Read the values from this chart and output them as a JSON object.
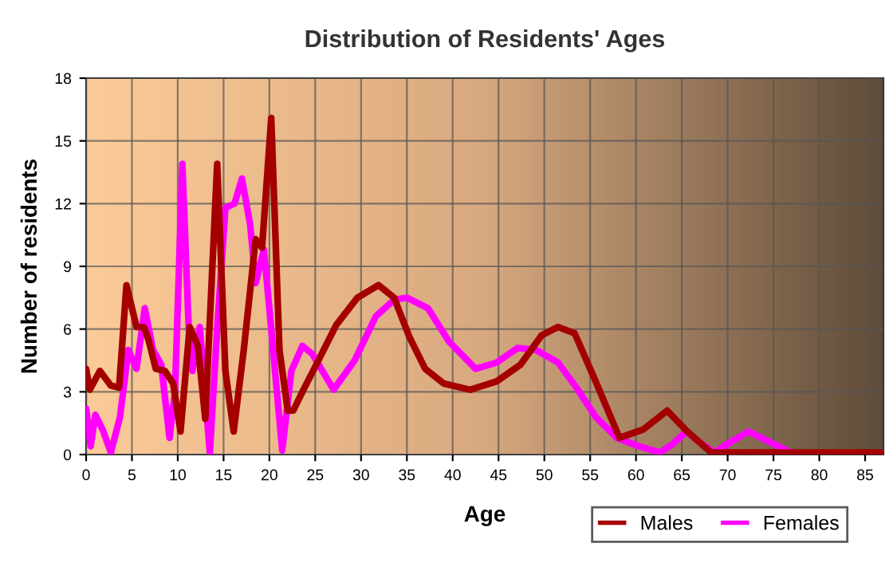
{
  "chart_data": {
    "type": "line",
    "title": "Distribution of Residents' Ages",
    "xlabel": "Age",
    "ylabel": "Number of residents",
    "xlim": [
      0,
      87
    ],
    "xticks": [
      0,
      5,
      10,
      15,
      20,
      25,
      30,
      35,
      40,
      45,
      50,
      55,
      60,
      65,
      70,
      75,
      80,
      85
    ],
    "ylim": [
      0,
      18
    ],
    "yticks": [
      0,
      3,
      6,
      9,
      12,
      15,
      18
    ],
    "grid": true,
    "legend": "bottom right",
    "line_style": "solid",
    "marker": "none",
    "series": [
      {
        "name": "Males",
        "color": "#a50000",
        "x": [
          0,
          0.4,
          1.5,
          2.7,
          3.6,
          4.4,
          5.5,
          6.3,
          6.8,
          7.6,
          8.6,
          9.5,
          10.3,
          11.3,
          12.2,
          13,
          14.3,
          15.2,
          16.1,
          17.2,
          18.5,
          19.2,
          20.2,
          21.1,
          22,
          22.6,
          23.6,
          25,
          27.3,
          29.6,
          31.9,
          33.6,
          35.3,
          37,
          39,
          41.9,
          44.8,
          47.4,
          49.7,
          51.5,
          53.3,
          55.6,
          58.2,
          60.8,
          63.4,
          65.6,
          68.2,
          70.4,
          75,
          79.7,
          86.7
        ],
        "values": [
          4.1,
          3.1,
          4.0,
          3.3,
          3.2,
          8.1,
          6.1,
          6.1,
          5.5,
          4.1,
          4.0,
          3.4,
          1.1,
          6.1,
          5.2,
          1.7,
          13.9,
          4,
          1.1,
          5,
          10.3,
          9.9,
          16.1,
          5,
          2.1,
          2.1,
          3,
          4.2,
          6.2,
          7.5,
          8.1,
          7.5,
          5.6,
          4.1,
          3.4,
          3.1,
          3.5,
          4.3,
          5.7,
          6.1,
          5.8,
          3.5,
          0.8,
          1.2,
          2.1,
          1.1,
          0.1,
          0.1,
          0.1,
          0.1,
          0.1
        ]
      },
      {
        "name": "Females",
        "color": "#ff00ff",
        "x": [
          0,
          0.5,
          1,
          1.8,
          2.7,
          3.7,
          4.6,
          5.5,
          6.4,
          7.3,
          8.2,
          9.1,
          9.7,
          10.5,
          11.2,
          11.6,
          12.4,
          13.5,
          14.3,
          15.2,
          16.2,
          17,
          17.9,
          18.5,
          19.4,
          20.2,
          21.4,
          22.4,
          23.6,
          24.7,
          27,
          29.3,
          31.6,
          33.6,
          35,
          37.3,
          39.6,
          42.5,
          44.8,
          47.1,
          49.1,
          51.5,
          53.5,
          55.6,
          57.9,
          60.3,
          62.6,
          64,
          65.5,
          66.9,
          68.6,
          70.3,
          72.3,
          74.6,
          76.9,
          80
        ],
        "values": [
          2.2,
          0.4,
          1.9,
          1.2,
          0.1,
          1.8,
          5,
          4.1,
          7,
          5,
          4.3,
          0.8,
          3,
          13.9,
          6,
          4,
          6.1,
          0.1,
          6,
          11.8,
          12,
          13.2,
          11,
          8.2,
          9.8,
          6,
          0.2,
          4,
          5.2,
          4.8,
          3.1,
          4.5,
          6.6,
          7.4,
          7.5,
          7.0,
          5.4,
          4.1,
          4.4,
          5.1,
          5,
          4.4,
          3.2,
          1.8,
          0.8,
          0.4,
          0.1,
          0.5,
          1.1,
          0.6,
          0.1,
          0.6,
          1.1,
          0.6,
          0.1,
          0
        ]
      }
    ]
  }
}
